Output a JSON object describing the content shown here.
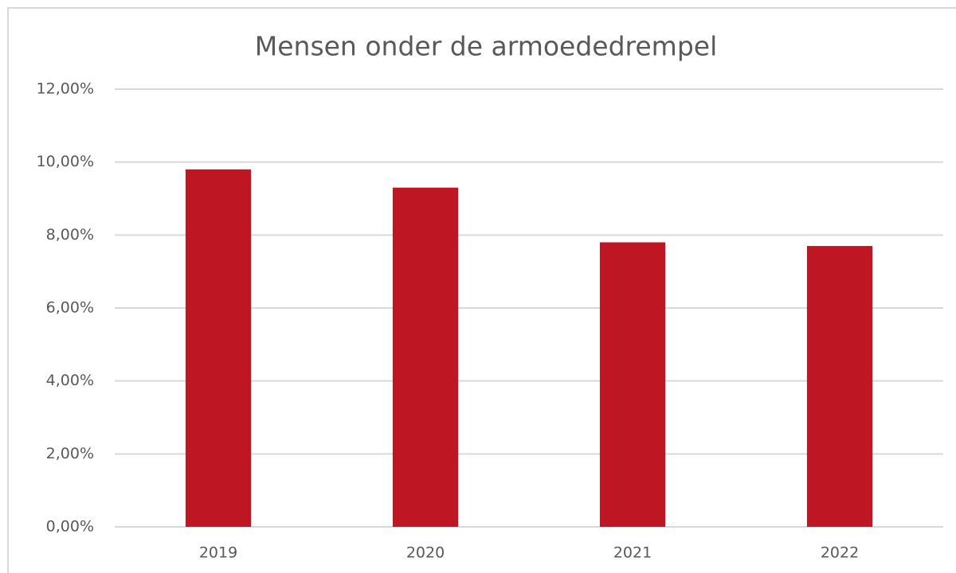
{
  "chart_data": {
    "type": "bar",
    "title": "Mensen onder de armoededrempel",
    "categories": [
      "2019",
      "2020",
      "2021",
      "2022"
    ],
    "values": [
      9.8,
      9.3,
      7.8,
      7.7
    ],
    "color": "#be1622",
    "ylim": [
      0,
      12
    ],
    "yticks": [
      {
        "value": 0,
        "label": "0,00%"
      },
      {
        "value": 2,
        "label": "2,00%"
      },
      {
        "value": 4,
        "label": "4,00%"
      },
      {
        "value": 6,
        "label": "6,00%"
      },
      {
        "value": 8,
        "label": "8,00%"
      },
      {
        "value": 10,
        "label": "10,00%"
      },
      {
        "value": 12,
        "label": "12,00%"
      }
    ],
    "grid": true
  }
}
